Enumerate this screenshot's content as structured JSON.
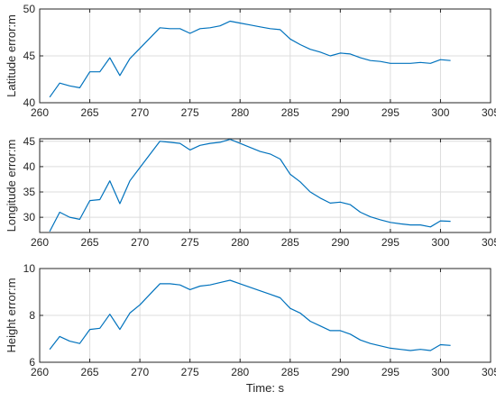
{
  "chart_data": [
    {
      "type": "line",
      "ylabel": "Latitude error:m",
      "xlabel": "",
      "xlim": [
        260,
        305
      ],
      "ylim": [
        40,
        50
      ],
      "xticks": [
        260,
        265,
        270,
        275,
        280,
        285,
        290,
        295,
        300,
        305
      ],
      "yticks": [
        40,
        45,
        50
      ],
      "grid": true,
      "color": "#0072BD",
      "series": [
        {
          "x": [
            261,
            262,
            263,
            264,
            265,
            266,
            267,
            268,
            269,
            270,
            272,
            273,
            274,
            275,
            276,
            277,
            278,
            279,
            280,
            281,
            282,
            283,
            284,
            285,
            286,
            287,
            288,
            289,
            290,
            291,
            292,
            293,
            294,
            295,
            296,
            297,
            298,
            299,
            300,
            301
          ],
          "values": [
            40.6,
            42.1,
            41.8,
            41.6,
            43.3,
            43.3,
            44.8,
            42.9,
            44.7,
            45.8,
            48.0,
            47.9,
            47.9,
            47.4,
            47.9,
            48.0,
            48.2,
            48.7,
            48.5,
            48.3,
            48.1,
            47.9,
            47.8,
            46.8,
            46.2,
            45.7,
            45.4,
            45.0,
            45.3,
            45.2,
            44.8,
            44.5,
            44.4,
            44.2,
            44.2,
            44.2,
            44.3,
            44.2,
            44.6,
            44.5
          ]
        }
      ]
    },
    {
      "type": "line",
      "ylabel": "Longitude error:m",
      "xlabel": "",
      "xlim": [
        260,
        305
      ],
      "ylim": [
        27,
        45.5
      ],
      "xticks": [
        260,
        265,
        270,
        275,
        280,
        285,
        290,
        295,
        300,
        305
      ],
      "yticks": [
        30,
        35,
        40,
        45
      ],
      "grid": true,
      "color": "#0072BD",
      "series": [
        {
          "x": [
            261,
            262,
            263,
            264,
            265,
            266,
            267,
            268,
            269,
            270,
            272,
            273,
            274,
            275,
            276,
            277,
            278,
            279,
            280,
            281,
            282,
            283,
            284,
            285,
            286,
            287,
            288,
            289,
            290,
            291,
            292,
            293,
            294,
            295,
            296,
            297,
            298,
            299,
            300,
            301
          ],
          "values": [
            27.2,
            31.0,
            30.0,
            29.6,
            33.3,
            33.5,
            37.2,
            32.7,
            37.2,
            39.8,
            45.0,
            44.8,
            44.6,
            43.3,
            44.2,
            44.6,
            44.8,
            45.4,
            44.6,
            43.8,
            43.0,
            42.5,
            41.5,
            38.5,
            37.0,
            35.0,
            33.8,
            32.8,
            33.0,
            32.5,
            31.0,
            30.1,
            29.5,
            29.0,
            28.7,
            28.5,
            28.5,
            28.1,
            29.3,
            29.2
          ]
        }
      ]
    },
    {
      "type": "line",
      "ylabel": "Height error:m",
      "xlabel": "Time: s",
      "xlim": [
        260,
        305
      ],
      "ylim": [
        6,
        10
      ],
      "xticks": [
        260,
        265,
        270,
        275,
        280,
        285,
        290,
        295,
        300,
        305
      ],
      "yticks": [
        6,
        8,
        10
      ],
      "grid": true,
      "color": "#0072BD",
      "series": [
        {
          "x": [
            261,
            262,
            263,
            264,
            265,
            266,
            267,
            268,
            269,
            270,
            272,
            273,
            274,
            275,
            276,
            277,
            278,
            279,
            280,
            281,
            282,
            283,
            284,
            285,
            286,
            287,
            288,
            289,
            290,
            291,
            292,
            293,
            294,
            295,
            296,
            297,
            298,
            299,
            300,
            301
          ],
          "values": [
            6.55,
            7.1,
            6.9,
            6.8,
            7.4,
            7.45,
            8.05,
            7.4,
            8.1,
            8.45,
            9.35,
            9.35,
            9.3,
            9.1,
            9.25,
            9.3,
            9.4,
            9.5,
            9.35,
            9.2,
            9.05,
            8.9,
            8.75,
            8.3,
            8.1,
            7.75,
            7.55,
            7.35,
            7.35,
            7.2,
            6.95,
            6.8,
            6.7,
            6.6,
            6.55,
            6.5,
            6.55,
            6.5,
            6.75,
            6.72
          ]
        }
      ]
    }
  ]
}
